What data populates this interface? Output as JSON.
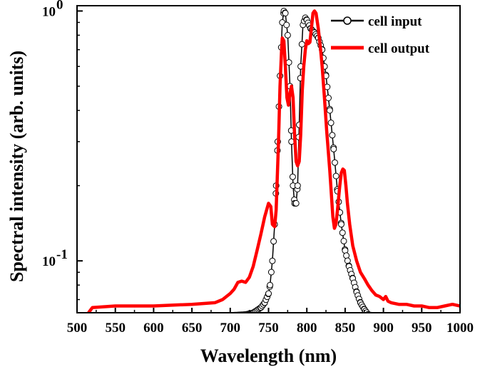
{
  "chart_data": {
    "type": "line",
    "title": "",
    "xlabel": "Wavelength (nm)",
    "ylabel": "Spectral intensity (arb. units)",
    "x_range": [
      500,
      1000
    ],
    "y_range": [
      0.062,
      1.05
    ],
    "y_scale": "log",
    "grid": false,
    "legend_position": "top-right",
    "x_ticks": [
      "500",
      "550",
      "600",
      "650",
      "700",
      "750",
      "800",
      "850",
      "900",
      "950",
      "1000"
    ],
    "y_ticks": [
      {
        "value": 1,
        "base": "10",
        "exp": "0"
      },
      {
        "value": 0.1,
        "base": "10",
        "exp": "-1"
      }
    ],
    "series": [
      {
        "name": "cell input",
        "style": "line-open-circles",
        "color": "#000000",
        "x": [
          520,
          540,
          560,
          580,
          600,
          620,
          640,
          660,
          680,
          700,
          720,
          730,
          740,
          745,
          750,
          752,
          755,
          758,
          760,
          762,
          765,
          768,
          770,
          772,
          775,
          778,
          780,
          782,
          784,
          786,
          788,
          790,
          792,
          795,
          798,
          800,
          805,
          810,
          815,
          820,
          825,
          830,
          835,
          840,
          845,
          850,
          855,
          860,
          865,
          870,
          875,
          880,
          890,
          900,
          920,
          940,
          960,
          980,
          1000
        ],
        "y": [
          0.059,
          0.059,
          0.059,
          0.059,
          0.059,
          0.059,
          0.0595,
          0.06,
          0.06,
          0.0605,
          0.061,
          0.062,
          0.065,
          0.068,
          0.074,
          0.08,
          0.1,
          0.14,
          0.2,
          0.3,
          0.55,
          0.9,
          1.0,
          0.98,
          0.8,
          0.5,
          0.3,
          0.2,
          0.17,
          0.17,
          0.2,
          0.35,
          0.6,
          0.88,
          0.94,
          0.92,
          0.85,
          0.82,
          0.78,
          0.7,
          0.55,
          0.4,
          0.28,
          0.19,
          0.14,
          0.11,
          0.095,
          0.085,
          0.075,
          0.068,
          0.064,
          0.061,
          0.06,
          0.06,
          0.059,
          0.059,
          0.059,
          0.059,
          0.059
        ]
      },
      {
        "name": "cell output",
        "style": "thick-line",
        "color": "#ff0000",
        "x": [
          515,
          520,
          550,
          600,
          650,
          680,
          690,
          700,
          705,
          710,
          715,
          720,
          725,
          730,
          735,
          740,
          745,
          750,
          753,
          755,
          758,
          760,
          763,
          765,
          767,
          768,
          770,
          772,
          774,
          776,
          778,
          780,
          782,
          784,
          786,
          788,
          790,
          792,
          794,
          796,
          798,
          800,
          802,
          804,
          806,
          808,
          810,
          812,
          815,
          818,
          820,
          823,
          826,
          830,
          834,
          836,
          838,
          840,
          843,
          845,
          847,
          849,
          851,
          853,
          856,
          860,
          865,
          870,
          875,
          880,
          885,
          890,
          895,
          900,
          903,
          906,
          910,
          920,
          930,
          940,
          950,
          960,
          970,
          980,
          990,
          1000
        ],
        "y": [
          0.062,
          0.065,
          0.066,
          0.066,
          0.067,
          0.068,
          0.07,
          0.074,
          0.077,
          0.082,
          0.083,
          0.082,
          0.086,
          0.095,
          0.11,
          0.128,
          0.15,
          0.17,
          0.165,
          0.14,
          0.137,
          0.16,
          0.3,
          0.5,
          0.7,
          0.78,
          0.76,
          0.6,
          0.45,
          0.42,
          0.47,
          0.5,
          0.45,
          0.32,
          0.25,
          0.24,
          0.25,
          0.32,
          0.48,
          0.6,
          0.7,
          0.76,
          0.74,
          0.75,
          0.85,
          0.98,
          1.0,
          0.98,
          0.85,
          0.7,
          0.6,
          0.45,
          0.33,
          0.23,
          0.15,
          0.135,
          0.14,
          0.16,
          0.2,
          0.225,
          0.233,
          0.23,
          0.2,
          0.17,
          0.14,
          0.115,
          0.1,
          0.09,
          0.085,
          0.08,
          0.076,
          0.073,
          0.072,
          0.07,
          0.072,
          0.069,
          0.068,
          0.067,
          0.067,
          0.066,
          0.066,
          0.065,
          0.065,
          0.066,
          0.067,
          0.066
        ]
      }
    ]
  }
}
